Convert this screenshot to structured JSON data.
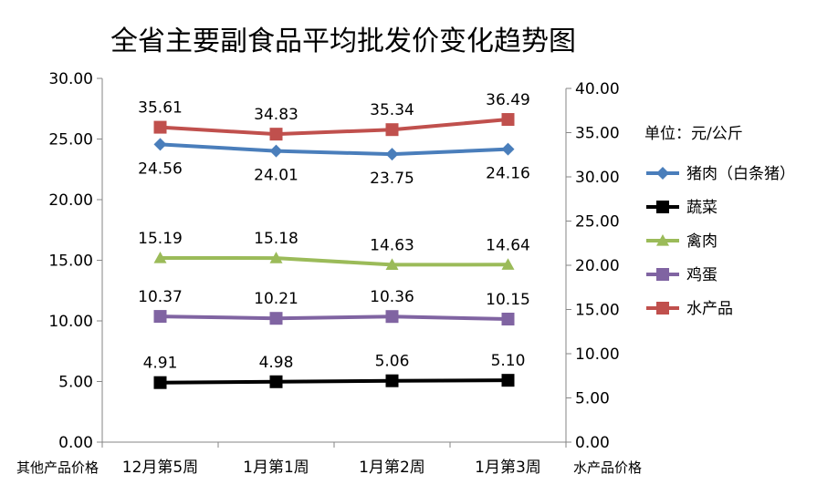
{
  "chart_data": {
    "type": "line",
    "title": "全省主要副食品平均批发价变化趋势图",
    "unit_label": "单位：元/公斤",
    "categories": [
      "12月第5周",
      "1月第1周",
      "1月第2周",
      "1月第3周"
    ],
    "y_left": {
      "label": "其他产品价格",
      "range": [
        0,
        30
      ],
      "ticks": [
        "0.00",
        "5.00",
        "10.00",
        "15.00",
        "20.00",
        "25.00",
        "30.00"
      ]
    },
    "y_right": {
      "label": "水产品价格",
      "range": [
        0,
        40
      ],
      "ticks": [
        "0.00",
        "5.00",
        "10.00",
        "15.00",
        "20.00",
        "25.00",
        "30.00",
        "35.00",
        "40.00"
      ]
    },
    "legend_position": "right",
    "grid": false,
    "series": [
      {
        "name": "猪肉（白条猪）",
        "axis": "left",
        "marker": "diamond",
        "color": "#4a7ebb",
        "values": [
          24.56,
          24.01,
          23.75,
          24.16
        ],
        "labels": [
          "24.56",
          "24.01",
          "23.75",
          "24.16"
        ],
        "label_pos": "below"
      },
      {
        "name": "蔬菜",
        "axis": "left",
        "marker": "square",
        "color": "#000000",
        "values": [
          4.91,
          4.98,
          5.06,
          5.1
        ],
        "labels": [
          "4.91",
          "4.98",
          "5.06",
          "5.10"
        ],
        "label_pos": "above"
      },
      {
        "name": "禽肉",
        "axis": "left",
        "marker": "triangle",
        "color": "#9bbb59",
        "values": [
          15.19,
          15.18,
          14.63,
          14.64
        ],
        "labels": [
          "15.19",
          "15.18",
          "14.63",
          "14.64"
        ],
        "label_pos": "above"
      },
      {
        "name": "鸡蛋",
        "axis": "left",
        "marker": "square",
        "color": "#8064a2",
        "values": [
          10.37,
          10.21,
          10.36,
          10.15
        ],
        "labels": [
          "10.37",
          "10.21",
          "10.36",
          "10.15"
        ],
        "label_pos": "above"
      },
      {
        "name": "水产品",
        "axis": "right",
        "marker": "square",
        "color": "#c0504d",
        "values": [
          35.61,
          34.83,
          35.34,
          36.49
        ],
        "labels": [
          "35.61",
          "34.83",
          "35.34",
          "36.49"
        ],
        "label_pos": "above"
      }
    ]
  }
}
